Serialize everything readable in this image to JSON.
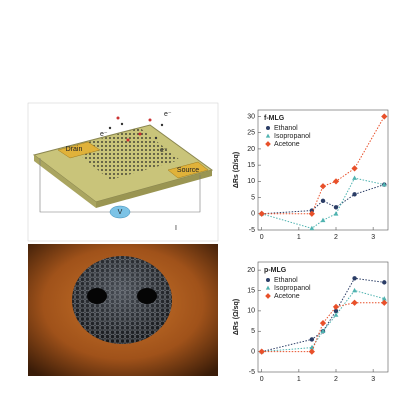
{
  "schematic": {
    "labels": [
      "Drain",
      "Source",
      "V",
      "I",
      "e⁻",
      "e⁻",
      "e⁻"
    ]
  },
  "chart_data": [
    {
      "type": "line",
      "title": "f-MLG",
      "y_label": "ΔRs (Ω/sq)",
      "x": [
        0,
        1.35,
        1.65,
        2.0,
        2.5,
        3.3
      ],
      "series": [
        {
          "name": "Ethanol",
          "color": "#2b3d66",
          "values": [
            0,
            1,
            4,
            2,
            6,
            9
          ]
        },
        {
          "name": "Isopropanol",
          "color": "#4fb3b0",
          "values": [
            0,
            -4.5,
            -2,
            0,
            11,
            9
          ]
        },
        {
          "name": "Acetone",
          "color": "#e8502a",
          "values": [
            0,
            0,
            8.5,
            10,
            14,
            30
          ]
        }
      ],
      "xlim": [
        -0.1,
        3.4
      ],
      "xticks": [
        0,
        1,
        2,
        3
      ],
      "ylim": [
        -5,
        32
      ],
      "yticks": [
        -5,
        0,
        5,
        10,
        15,
        20,
        25,
        30
      ]
    },
    {
      "type": "line",
      "title": "p-MLG",
      "y_label": "ΔRs (Ω/sq)",
      "x": [
        0,
        1.35,
        1.65,
        2.0,
        2.5,
        3.3
      ],
      "series": [
        {
          "name": "Ethanol",
          "color": "#2b3d66",
          "values": [
            0,
            3,
            5,
            10,
            18,
            17
          ]
        },
        {
          "name": "Isopropanol",
          "color": "#4fb3b0",
          "values": [
            0,
            1,
            5,
            9,
            15,
            13
          ]
        },
        {
          "name": "Acetone",
          "color": "#e8502a",
          "values": [
            0,
            0,
            7,
            11,
            12,
            12
          ]
        }
      ],
      "xlim": [
        -0.1,
        3.4
      ],
      "xticks": [
        0,
        1,
        2,
        3
      ],
      "ylim": [
        -5,
        22
      ],
      "yticks": [
        -5,
        0,
        5,
        10,
        15,
        20
      ]
    }
  ]
}
